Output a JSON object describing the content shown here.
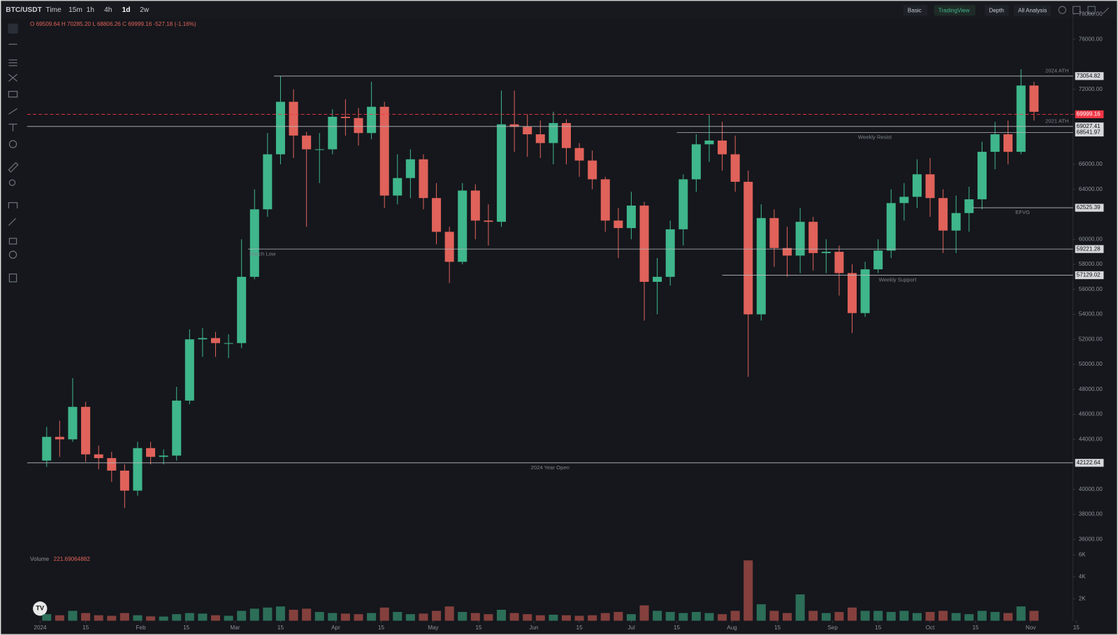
{
  "toolbar": {
    "symbol": "BTC/USDT",
    "intervals": [
      "Time",
      "15m",
      "1h",
      "4h",
      "1d",
      "2w"
    ],
    "views": [
      "Basic",
      "TradingView",
      "Depth",
      "All Analysis"
    ]
  },
  "chart_data": {
    "type": "candlestick",
    "legend_text": "O 69509.64 H 70285.20 L 68806.26 C 69999.16 -527.18 (-1.16%)",
    "up_color": "#3fb68b",
    "down_color": "#e0625a",
    "x": [
      0,
      4,
      8,
      12,
      16,
      20,
      24,
      28,
      32,
      36,
      40,
      44,
      48,
      52,
      56,
      60,
      64,
      68,
      72,
      76,
      80,
      84,
      88,
      92,
      96,
      100,
      104,
      108,
      112,
      116,
      120,
      124,
      128,
      132,
      136,
      140,
      144,
      148,
      152,
      156,
      160,
      164,
      168,
      172,
      176,
      180,
      184,
      188,
      192,
      196,
      200,
      204,
      208,
      212,
      216,
      220,
      224,
      228,
      232,
      236,
      240,
      244,
      248,
      252,
      256,
      260,
      264,
      268,
      272,
      276,
      280,
      284,
      288,
      292,
      296,
      300,
      304
    ],
    "open": [
      42300,
      44200,
      44000,
      46600,
      42800,
      42500,
      41500,
      39900,
      43300,
      42600,
      42700,
      47100,
      52000,
      52100,
      51700,
      51700,
      57000,
      62400,
      66800,
      71000,
      68300,
      67200,
      67200,
      69800,
      69700,
      68500,
      70600,
      63500,
      64900,
      66400,
      63300,
      60600,
      58200,
      63900,
      61500,
      61400,
      69200,
      69000,
      68400,
      67700,
      69300,
      67300,
      66300,
      64800,
      61500,
      60900,
      62700,
      56600,
      57000,
      60800,
      64800,
      67600,
      67900,
      66800,
      64600,
      54000,
      61700,
      59300,
      58700,
      61400,
      58900,
      59000,
      57300,
      54100,
      57600,
      59100,
      62900,
      63400,
      65200,
      63300,
      60700,
      62100,
      63200,
      67000,
      68400,
      67000,
      72300
    ],
    "high": [
      45000,
      45500,
      48900,
      47000,
      43500,
      43000,
      42000,
      43800,
      43800,
      43200,
      48200,
      52800,
      52900,
      52600,
      52400,
      60000,
      64000,
      68500,
      73050,
      72000,
      68600,
      68500,
      70400,
      71200,
      70500,
      72600,
      71000,
      66800,
      67200,
      66800,
      64500,
      61000,
      64500,
      64400,
      62800,
      71900,
      71900,
      70000,
      69500,
      70200,
      69600,
      67700,
      67100,
      65000,
      62500,
      63800,
      63000,
      58500,
      61500,
      65200,
      68400,
      70000,
      69400,
      68300,
      65500,
      62800,
      62400,
      61000,
      62500,
      61800,
      60000,
      59500,
      58000,
      58200,
      60000,
      64000,
      64500,
      66400,
      66500,
      64000,
      63500,
      64200,
      67800,
      69400,
      69500,
      73600,
      72600
    ],
    "low": [
      41800,
      42600,
      43800,
      42200,
      41600,
      40600,
      38500,
      39500,
      42000,
      42000,
      42300,
      46800,
      50600,
      50600,
      50500,
      51300,
      56800,
      61800,
      66000,
      66500,
      61000,
      64500,
      66800,
      68300,
      67500,
      68000,
      62500,
      62800,
      63300,
      62400,
      59600,
      56500,
      58000,
      60000,
      59500,
      61000,
      67000,
      66600,
      66500,
      66000,
      66000,
      65000,
      64000,
      60600,
      58500,
      60000,
      53500,
      54000,
      56300,
      59500,
      63800,
      66200,
      65500,
      63800,
      49000,
      53500,
      57800,
      57000,
      57300,
      57500,
      57300,
      55500,
      52500,
      53800,
      57300,
      58500,
      61500,
      62500,
      61800,
      58900,
      58900,
      60600,
      62400,
      65600,
      66000,
      66800,
      69500
    ],
    "close": [
      44200,
      44000,
      46600,
      42800,
      42500,
      41500,
      39900,
      43300,
      42600,
      42700,
      47100,
      52000,
      52100,
      51700,
      51700,
      57000,
      62400,
      66800,
      71000,
      68300,
      67200,
      67200,
      69800,
      69700,
      68500,
      70600,
      63500,
      64900,
      66400,
      63300,
      60600,
      58200,
      63900,
      61500,
      61400,
      69200,
      69000,
      68400,
      67700,
      69300,
      67300,
      66300,
      64800,
      61500,
      60900,
      62700,
      56600,
      57000,
      60800,
      64800,
      67600,
      67900,
      66800,
      64600,
      54000,
      61700,
      59300,
      58700,
      61400,
      58900,
      59000,
      57300,
      54100,
      57600,
      59100,
      62900,
      63400,
      65200,
      63300,
      60700,
      62100,
      63200,
      67000,
      68400,
      67000,
      72300,
      70200
    ],
    "xlim": [
      -4,
      318
    ],
    "xticks": [
      {
        "value": 0,
        "label": "2024"
      },
      {
        "value": 14,
        "label": "15"
      },
      {
        "value": 31,
        "label": "Feb"
      },
      {
        "value": 45,
        "label": "15"
      },
      {
        "value": 60,
        "label": "Mar"
      },
      {
        "value": 74,
        "label": "15"
      },
      {
        "value": 91,
        "label": "Apr"
      },
      {
        "value": 105,
        "label": "15"
      },
      {
        "value": 121,
        "label": "May"
      },
      {
        "value": 135,
        "label": "15"
      },
      {
        "value": 152,
        "label": "Jun"
      },
      {
        "value": 166,
        "label": "15"
      },
      {
        "value": 182,
        "label": "Jul"
      },
      {
        "value": 196,
        "label": "15"
      },
      {
        "value": 213,
        "label": "Aug"
      },
      {
        "value": 227,
        "label": "15"
      },
      {
        "value": 244,
        "label": "Sep"
      },
      {
        "value": 258,
        "label": "15"
      },
      {
        "value": 274,
        "label": "Oct"
      },
      {
        "value": 288,
        "label": "15"
      },
      {
        "value": 305,
        "label": "Nov"
      },
      {
        "value": 319,
        "label": "15"
      }
    ],
    "ylim": [
      35200,
      78000
    ],
    "yticks": [
      {
        "value": 36000,
        "label": "36000.00"
      },
      {
        "value": 38000,
        "label": "38000.00"
      },
      {
        "value": 40000,
        "label": "40000.00"
      },
      {
        "value": 44000,
        "label": "44000.00"
      },
      {
        "value": 46000,
        "label": "46000.00"
      },
      {
        "value": 48000,
        "label": "48000.00"
      },
      {
        "value": 50000,
        "label": "50000.00"
      },
      {
        "value": 52000,
        "label": "52000.00"
      },
      {
        "value": 54000,
        "label": "54000.00"
      },
      {
        "value": 56000,
        "label": "56000.00"
      },
      {
        "value": 58000,
        "label": "58000.00"
      },
      {
        "value": 60000,
        "label": "60000.00"
      },
      {
        "value": 64000,
        "label": "64000.00"
      },
      {
        "value": 66000,
        "label": "66000.00"
      },
      {
        "value": 70000,
        "label": "70000.00"
      },
      {
        "value": 72000,
        "label": "72000.00"
      },
      {
        "value": 76000,
        "label": "76000.00"
      },
      {
        "value": 78000,
        "label": "78000.00"
      }
    ],
    "levels": [
      {
        "value": 73054.82,
        "name": "2024 ATH",
        "start": 72
      },
      {
        "value": 69999.16,
        "color": "#f23645",
        "style": "dashed",
        "start": -4
      },
      {
        "value": 69027.41,
        "name": "2021 ATH",
        "start": -4
      },
      {
        "value": 68541.97,
        "name": "Weekly Resist",
        "start": 196
      },
      {
        "value": 62525.39,
        "name": "EFVG",
        "start": 287
      },
      {
        "value": 59221.28,
        "name": "March Low",
        "start": 64
      },
      {
        "value": 57129.02,
        "name": "Weekly Support",
        "start": 210
      },
      {
        "value": 42122.64,
        "name": "2024 Year Open",
        "start": -4
      }
    ]
  },
  "volume": {
    "title": "Volume",
    "value_text": "221.69064882",
    "values": [
      600,
      500,
      900,
      700,
      500,
      450,
      700,
      500,
      400,
      380,
      600,
      700,
      650,
      500,
      450,
      900,
      1100,
      1200,
      1300,
      1000,
      1100,
      800,
      700,
      650,
      600,
      700,
      1200,
      800,
      600,
      650,
      900,
      1300,
      800,
      700,
      600,
      1000,
      700,
      600,
      500,
      550,
      500,
      450,
      500,
      700,
      800,
      600,
      1400,
      900,
      800,
      700,
      800,
      700,
      600,
      900,
      5500,
      1500,
      900,
      700,
      2400,
      900,
      700,
      800,
      1200,
      900,
      900,
      800,
      900,
      700,
      800,
      900,
      700,
      600,
      900,
      800,
      700,
      1300,
      900
    ],
    "ylim": [
      0,
      6500
    ],
    "yticks": [
      {
        "value": 2000,
        "label": "2K"
      },
      {
        "value": 4000,
        "label": "4K"
      },
      {
        "value": 6000,
        "label": "6K"
      }
    ]
  }
}
